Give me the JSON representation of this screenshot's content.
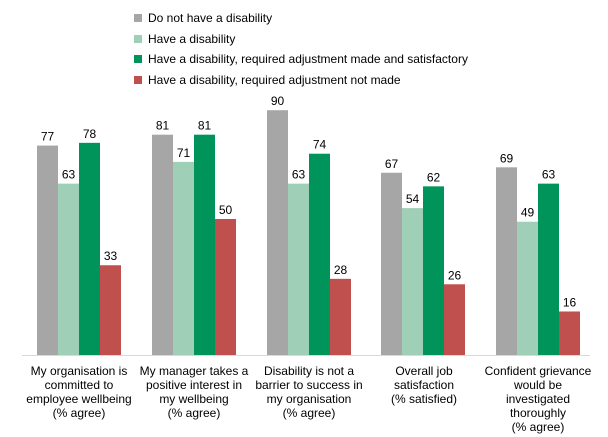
{
  "chart_data": {
    "type": "bar",
    "title": "",
    "xlabel": "",
    "ylabel": "",
    "ylim": [
      0,
      100
    ],
    "grid": false,
    "legend_position": "top",
    "categories": [
      "My organisation is committed to employee wellbeing (% agree)",
      "My manager takes a positive interest in my wellbeing (% agree)",
      "Disability is not a barrier to success in my organisation (% agree)",
      "Overall job satisfaction (% satisfied)",
      "Confident grievance would be investigated thoroughly (% agree)"
    ],
    "category_lines": [
      [
        "My organisation is",
        "committed to",
        "employee wellbeing",
        "(% agree)"
      ],
      [
        "My manager takes a",
        "positive interest in",
        "my wellbeing",
        "(% agree)"
      ],
      [
        "Disability is not a",
        "barrier to success in",
        "my organisation",
        "(% agree)"
      ],
      [
        "Overall job",
        "satisfaction",
        "(% satisfied)"
      ],
      [
        "Confident grievance",
        "would be",
        "investigated",
        "thoroughly",
        "(% agree)"
      ]
    ],
    "series": [
      {
        "name": "Do not have a disability",
        "color": "#a6a6a6",
        "values": [
          77,
          81,
          90,
          67,
          69
        ]
      },
      {
        "name": "Have a disability",
        "color": "#9fcfb6",
        "values": [
          63,
          71,
          63,
          54,
          49
        ]
      },
      {
        "name": "Have a disability, required adjustment made and satisfactory",
        "color": "#00935a",
        "values": [
          78,
          81,
          74,
          62,
          63
        ]
      },
      {
        "name": "Have a disability, required adjustment not made",
        "color": "#c0504d",
        "values": [
          33,
          50,
          28,
          26,
          16
        ]
      }
    ]
  }
}
